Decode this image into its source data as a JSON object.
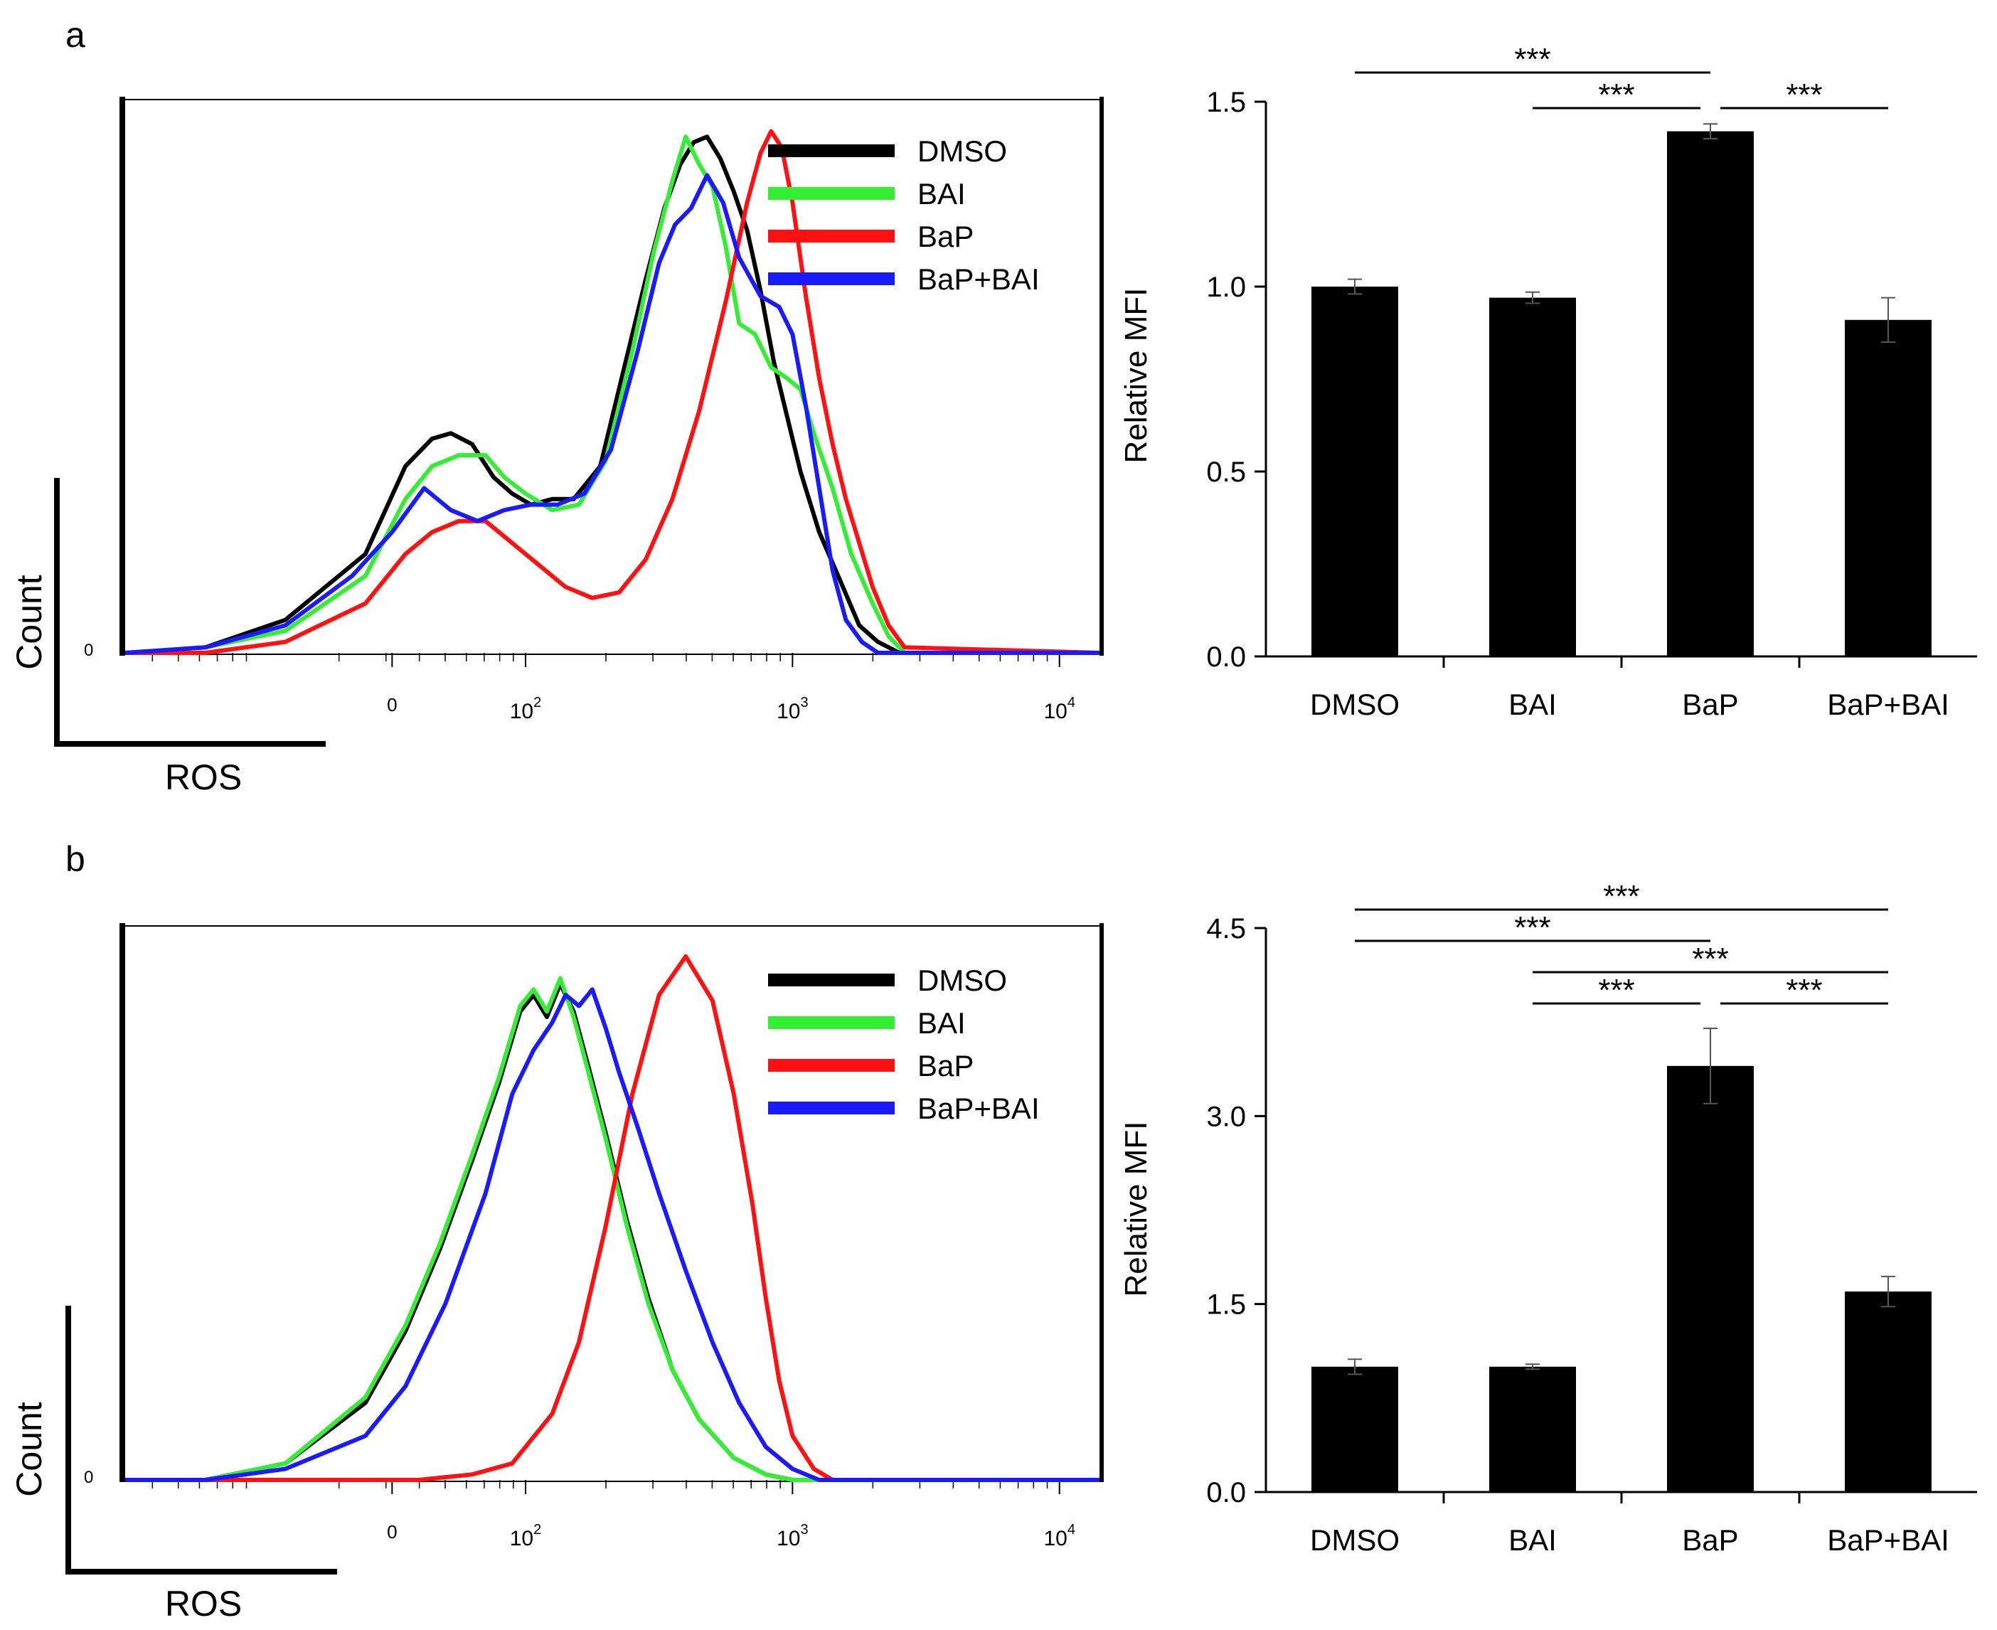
{
  "colors": {
    "DMSO": "#000000",
    "BAI": "#33ee33",
    "BaP": "#ff1111",
    "BaP+BAI": "#1a1aff",
    "bar": "#000000"
  },
  "chart_data": [
    {
      "panel": "a",
      "type": "line",
      "subtype": "flow-cytometry-histogram",
      "xlabel": "ROS",
      "ylabel": "Count",
      "y_zero_label": "0",
      "x_scale": "biexponential",
      "xticks": [
        "0",
        "10^2",
        "10^3",
        "10^4"
      ],
      "xtick_values": [
        0,
        100,
        1000,
        10000
      ],
      "xlim_log": [
        0.5,
        4.15
      ],
      "ylim": [
        0,
        100
      ],
      "legend": [
        "DMSO",
        "BAI",
        "BaP",
        "BaP+BAI"
      ],
      "legend_position": "top-right",
      "series": [
        {
          "name": "DMSO",
          "x": [
            0.5,
            0.8,
            1.1,
            1.4,
            1.55,
            1.65,
            1.72,
            1.8,
            1.88,
            1.95,
            2.02,
            2.1,
            2.18,
            2.28,
            2.38,
            2.45,
            2.52,
            2.58,
            2.63,
            2.68,
            2.73,
            2.78,
            2.83,
            2.88,
            2.93,
            2.97,
            3.03,
            3.1,
            3.18,
            3.25,
            3.32,
            3.4,
            4.15
          ],
          "y": [
            0,
            1,
            6,
            18,
            34,
            39,
            40,
            38,
            32,
            29,
            27,
            28,
            28,
            34,
            54,
            68,
            81,
            89,
            93,
            94,
            90,
            84,
            77,
            66,
            53,
            45,
            33,
            22,
            13,
            5,
            2,
            0,
            0
          ]
        },
        {
          "name": "BAI",
          "x": [
            0.5,
            0.8,
            1.1,
            1.4,
            1.55,
            1.65,
            1.75,
            1.85,
            1.92,
            2.0,
            2.1,
            2.2,
            2.3,
            2.4,
            2.48,
            2.55,
            2.6,
            2.65,
            2.7,
            2.75,
            2.8,
            2.86,
            2.92,
            2.98,
            3.03,
            3.08,
            3.15,
            3.22,
            3.3,
            3.36,
            3.42,
            4.15
          ],
          "y": [
            0,
            1,
            4,
            14,
            28,
            34,
            36,
            36,
            32,
            29,
            26,
            27,
            35,
            55,
            73,
            86,
            94,
            89,
            85,
            74,
            60,
            58,
            52,
            50,
            48,
            40,
            30,
            18,
            9,
            3,
            0,
            0
          ]
        },
        {
          "name": "BaP",
          "x": [
            0.5,
            0.8,
            1.1,
            1.4,
            1.55,
            1.65,
            1.75,
            1.85,
            1.95,
            2.05,
            2.15,
            2.25,
            2.35,
            2.45,
            2.55,
            2.65,
            2.75,
            2.83,
            2.88,
            2.92,
            2.96,
            3.0,
            3.05,
            3.1,
            3.15,
            3.2,
            3.25,
            3.3,
            3.36,
            3.42,
            4.15
          ],
          "y": [
            0,
            0,
            2,
            9,
            18,
            22,
            24,
            24,
            20,
            16,
            12,
            10,
            11,
            17,
            28,
            44,
            64,
            82,
            91,
            95,
            92,
            82,
            65,
            50,
            38,
            28,
            20,
            12,
            5,
            1,
            0
          ]
        },
        {
          "name": "BaP+BAI",
          "x": [
            0.5,
            0.8,
            1.1,
            1.35,
            1.5,
            1.62,
            1.72,
            1.82,
            1.92,
            2.02,
            2.12,
            2.22,
            2.32,
            2.42,
            2.5,
            2.56,
            2.62,
            2.68,
            2.74,
            2.8,
            2.88,
            2.95,
            3.0,
            3.05,
            3.1,
            3.15,
            3.2,
            3.26,
            3.32,
            4.15
          ],
          "y": [
            0,
            1,
            5,
            14,
            22,
            30,
            26,
            24,
            26,
            27,
            27,
            29,
            37,
            55,
            71,
            78,
            81,
            87,
            82,
            72,
            65,
            63,
            58,
            45,
            30,
            15,
            6,
            2,
            0,
            0
          ]
        }
      ]
    },
    {
      "panel": "a",
      "type": "bar",
      "categories": [
        "DMSO",
        "BAI",
        "BaP",
        "BaP+BAI"
      ],
      "values": [
        1.0,
        0.97,
        1.42,
        0.91
      ],
      "errors": [
        0.02,
        0.015,
        0.02,
        0.06
      ],
      "ylabel": "Relative MFI",
      "ylim": [
        0,
        1.5
      ],
      "yticks": [
        "0.0",
        "0.5",
        "1.0",
        "1.5"
      ],
      "ytick_values": [
        0,
        0.5,
        1.0,
        1.5
      ],
      "significance": [
        {
          "from": "DMSO",
          "to": "BaP",
          "label": "***",
          "level": 1
        },
        {
          "from": "BAI",
          "to": "BaP",
          "label": "***",
          "level": 0
        },
        {
          "from": "BaP",
          "to": "BaP+BAI",
          "label": "***",
          "level": 0
        }
      ]
    },
    {
      "panel": "b",
      "type": "line",
      "subtype": "flow-cytometry-histogram",
      "xlabel": "ROS",
      "ylabel": "Count",
      "y_zero_label": "0",
      "x_scale": "biexponential",
      "xticks": [
        "0",
        "10^2",
        "10^3",
        "10^4"
      ],
      "xtick_values": [
        0,
        100,
        1000,
        10000
      ],
      "xlim_log": [
        0.5,
        4.15
      ],
      "ylim": [
        0,
        100
      ],
      "legend": [
        "DMSO",
        "BAI",
        "BaP",
        "BaP+BAI"
      ],
      "legend_position": "top-right",
      "series": [
        {
          "name": "DMSO",
          "x": [
            0.5,
            0.8,
            1.1,
            1.4,
            1.55,
            1.68,
            1.8,
            1.9,
            1.98,
            2.03,
            2.08,
            2.13,
            2.18,
            2.23,
            2.3,
            2.38,
            2.46,
            2.55,
            2.65,
            2.78,
            2.9,
            3.0,
            4.15
          ],
          "y": [
            0,
            0,
            3,
            14,
            27,
            42,
            58,
            72,
            85,
            88,
            84,
            90,
            85,
            76,
            63,
            47,
            33,
            20,
            11,
            4,
            1,
            0,
            0
          ]
        },
        {
          "name": "BAI",
          "x": [
            0.5,
            0.8,
            1.1,
            1.4,
            1.55,
            1.68,
            1.8,
            1.9,
            1.98,
            2.03,
            2.08,
            2.13,
            2.18,
            2.23,
            2.3,
            2.38,
            2.46,
            2.55,
            2.65,
            2.78,
            2.9,
            3.0,
            4.15
          ],
          "y": [
            0,
            0,
            3,
            15,
            28,
            43,
            59,
            73,
            86,
            89,
            85,
            91,
            84,
            75,
            62,
            46,
            32,
            20,
            11,
            4,
            1,
            0,
            0
          ]
        },
        {
          "name": "BaP",
          "x": [
            0.5,
            1.3,
            1.6,
            1.8,
            1.95,
            2.1,
            2.2,
            2.3,
            2.4,
            2.5,
            2.6,
            2.7,
            2.78,
            2.85,
            2.9,
            2.95,
            3.0,
            3.08,
            3.15,
            4.15
          ],
          "y": [
            0,
            0,
            0,
            1,
            3,
            12,
            25,
            46,
            70,
            88,
            95,
            87,
            70,
            50,
            33,
            18,
            8,
            2,
            0,
            0
          ]
        },
        {
          "name": "BaP+BAI",
          "x": [
            0.5,
            0.8,
            1.1,
            1.4,
            1.55,
            1.7,
            1.85,
            1.95,
            2.03,
            2.1,
            2.15,
            2.2,
            2.25,
            2.3,
            2.35,
            2.42,
            2.5,
            2.6,
            2.7,
            2.8,
            2.9,
            3.0,
            3.1,
            4.15
          ],
          "y": [
            0,
            0,
            2,
            8,
            17,
            32,
            52,
            70,
            78,
            83,
            88,
            86,
            89,
            82,
            74,
            64,
            52,
            38,
            25,
            14,
            6,
            2,
            0,
            0
          ]
        }
      ]
    },
    {
      "panel": "b",
      "type": "bar",
      "categories": [
        "DMSO",
        "BAI",
        "BaP",
        "BaP+BAI"
      ],
      "values": [
        1.0,
        1.0,
        3.4,
        1.6
      ],
      "errors": [
        0.06,
        0.02,
        0.3,
        0.12
      ],
      "ylabel": "Relative MFI",
      "ylim": [
        0,
        4.5
      ],
      "yticks": [
        "0.0",
        "1.5",
        "3.0",
        "4.5"
      ],
      "ytick_values": [
        0,
        1.5,
        3.0,
        4.5
      ],
      "significance": [
        {
          "from": "DMSO",
          "to": "BaP+BAI",
          "label": "***",
          "level": 3
        },
        {
          "from": "DMSO",
          "to": "BaP",
          "label": "***",
          "level": 2
        },
        {
          "from": "BAI",
          "to": "BaP+BAI",
          "label": "***",
          "level": 1
        },
        {
          "from": "BAI",
          "to": "BaP",
          "label": "***",
          "level": 0
        },
        {
          "from": "BaP",
          "to": "BaP+BAI",
          "label": "***",
          "level": 0
        }
      ]
    }
  ],
  "panel_labels": [
    "a",
    "b"
  ]
}
